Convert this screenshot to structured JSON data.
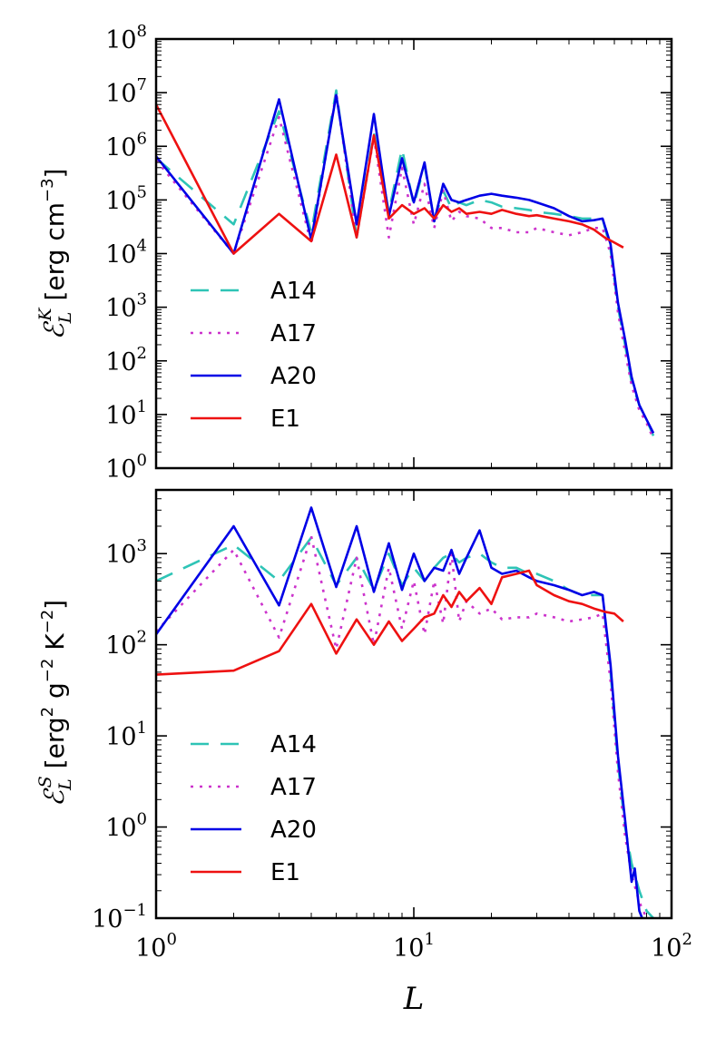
{
  "chart_data": [
    {
      "type": "line",
      "xscale": "log",
      "yscale": "log",
      "xlim": [
        1,
        100
      ],
      "ylim": [
        1,
        100000000
      ],
      "ylabel_symbol": "ℰ",
      "ylabel_sub": "L",
      "ylabel_sup": "K",
      "ylabel": "[erg cm",
      "ylabel_exp": "−3",
      "ylabel_close": "]",
      "xlabel": "",
      "yticks": [
        {
          "base": "10",
          "exp": "0"
        },
        {
          "base": "10",
          "exp": "1"
        },
        {
          "base": "10",
          "exp": "2"
        },
        {
          "base": "10",
          "exp": "3"
        },
        {
          "base": "10",
          "exp": "4"
        },
        {
          "base": "10",
          "exp": "5"
        },
        {
          "base": "10",
          "exp": "6"
        },
        {
          "base": "10",
          "exp": "7"
        },
        {
          "base": "10",
          "exp": "8"
        }
      ],
      "legend_position": "lower-left",
      "series": [
        {
          "name": "A14",
          "color": "#2ec4b6",
          "style": "dashed",
          "x": [
            1,
            2,
            3,
            4,
            5,
            6,
            7,
            8,
            9,
            10,
            11,
            12,
            13,
            14,
            15,
            16,
            18,
            20,
            22,
            25,
            28,
            30,
            35,
            40,
            45,
            50,
            54,
            58,
            62,
            66,
            70,
            75,
            80,
            85
          ],
          "y": [
            600000,
            35000,
            4500000,
            25000,
            11000000,
            20000,
            1800000,
            60000,
            900000,
            80000,
            450000,
            40000,
            150000,
            70000,
            90000,
            80000,
            100000,
            90000,
            75000,
            70000,
            65000,
            60000,
            55000,
            50000,
            45000,
            45000,
            45000,
            12000,
            1000,
            200,
            40,
            15,
            8,
            4
          ]
        },
        {
          "name": "A17",
          "color": "#cc33cc",
          "style": "dotted",
          "x": [
            1,
            2,
            3,
            4,
            5,
            6,
            7,
            8,
            9,
            10,
            11,
            12,
            13,
            14,
            15,
            16,
            18,
            20,
            22,
            25,
            28,
            30,
            35,
            40,
            45,
            50,
            54,
            58,
            62,
            66,
            70,
            75,
            80,
            85
          ],
          "y": [
            550000,
            10000,
            3500000,
            15000,
            10000000,
            20000,
            1500000,
            20000,
            400000,
            35000,
            200000,
            30000,
            150000,
            40000,
            60000,
            50000,
            45000,
            30000,
            30000,
            25000,
            25000,
            30000,
            25000,
            22000,
            25000,
            30000,
            30000,
            10000,
            800,
            150,
            35,
            12,
            7,
            3.5
          ]
        },
        {
          "name": "A20",
          "color": "#0000e6",
          "style": "solid",
          "x": [
            1,
            2,
            3,
            4,
            5,
            6,
            7,
            8,
            9,
            10,
            11,
            12,
            13,
            14,
            15,
            16,
            18,
            20,
            22,
            25,
            28,
            30,
            35,
            40,
            45,
            50,
            54,
            58,
            62,
            66,
            70,
            75,
            80,
            85
          ],
          "y": [
            650000,
            10000,
            7500000,
            18000,
            9000000,
            35000,
            4000000,
            50000,
            600000,
            90000,
            500000,
            40000,
            200000,
            100000,
            90000,
            100000,
            120000,
            130000,
            120000,
            110000,
            100000,
            90000,
            70000,
            50000,
            40000,
            42000,
            45000,
            15000,
            1200,
            250,
            50,
            15,
            8,
            4.5
          ]
        },
        {
          "name": "E1",
          "color": "#ee1111",
          "style": "solid",
          "x": [
            1,
            2,
            3,
            4,
            5,
            6,
            7,
            8,
            9,
            10,
            11,
            12,
            13,
            14,
            15,
            16,
            18,
            20,
            22,
            25,
            28,
            30,
            35,
            40,
            45,
            50,
            55,
            60,
            65
          ],
          "y": [
            6000000,
            10000,
            55000,
            17000,
            700000,
            20000,
            1600000,
            45000,
            80000,
            55000,
            70000,
            45000,
            80000,
            60000,
            70000,
            55000,
            60000,
            55000,
            65000,
            55000,
            50000,
            52000,
            45000,
            40000,
            35000,
            28000,
            20000,
            16000,
            13000
          ]
        }
      ]
    },
    {
      "type": "line",
      "xscale": "log",
      "yscale": "log",
      "xlim": [
        1,
        100
      ],
      "ylim": [
        0.1,
        5000
      ],
      "ylabel_symbol": "ℰ",
      "ylabel_sub": "L",
      "ylabel_sup": "S",
      "ylabel": "[erg",
      "ylabel_exp": "2",
      "ylabel_mid": " g",
      "ylabel_exp2": "−2",
      "ylabel_mid2": " K",
      "ylabel_exp3": "−2",
      "ylabel_close": "]",
      "xlabel": "L",
      "yticks": [
        {
          "base": "10",
          "exp": "−1"
        },
        {
          "base": "10",
          "exp": "0"
        },
        {
          "base": "10",
          "exp": "1"
        },
        {
          "base": "10",
          "exp": "2"
        },
        {
          "base": "10",
          "exp": "3"
        }
      ],
      "xticks": [
        {
          "base": "10",
          "exp": "0"
        },
        {
          "base": "10",
          "exp": "1"
        },
        {
          "base": "10",
          "exp": "2"
        }
      ],
      "legend_position": "lower-left",
      "series": [
        {
          "name": "A14",
          "color": "#2ec4b6",
          "style": "dashed",
          "x": [
            1,
            2,
            3,
            4,
            5,
            6,
            7,
            8,
            9,
            10,
            11,
            12,
            13,
            14,
            15,
            16,
            18,
            20,
            22,
            25,
            28,
            30,
            35,
            40,
            45,
            50,
            54,
            58,
            62,
            66,
            70,
            75,
            80,
            85
          ],
          "y": [
            500,
            1250,
            500,
            1500,
            450,
            900,
            400,
            1000,
            450,
            700,
            500,
            700,
            900,
            1000,
            800,
            900,
            1000,
            800,
            700,
            700,
            600,
            600,
            500,
            400,
            350,
            350,
            350,
            50,
            5,
            1,
            0.4,
            0.2,
            0.12,
            0.1
          ]
        },
        {
          "name": "A17",
          "color": "#cc33cc",
          "style": "dotted",
          "x": [
            1,
            2,
            3,
            4,
            5,
            6,
            7,
            8,
            9,
            10,
            11,
            12,
            13,
            14,
            15,
            16,
            18,
            20,
            22,
            25,
            28,
            30,
            35,
            40,
            45,
            50,
            54,
            58,
            62,
            66,
            70,
            75,
            80,
            85
          ],
          "y": [
            140,
            1100,
            120,
            1550,
            90,
            900,
            100,
            700,
            150,
            500,
            130,
            500,
            170,
            1000,
            180,
            300,
            220,
            250,
            190,
            200,
            200,
            220,
            200,
            180,
            190,
            200,
            220,
            40,
            4,
            0.8,
            0.3,
            0.15,
            0.1,
            0.08
          ]
        },
        {
          "name": "A20",
          "color": "#0000e6",
          "style": "solid",
          "x": [
            1,
            2,
            3,
            4,
            5,
            6,
            7,
            8,
            9,
            10,
            11,
            12,
            13,
            14,
            15,
            16,
            18,
            20,
            22,
            25,
            28,
            30,
            35,
            40,
            45,
            50,
            54,
            58,
            62,
            66,
            70,
            72,
            75,
            78,
            80
          ],
          "y": [
            130,
            2000,
            270,
            3200,
            430,
            2000,
            380,
            1300,
            400,
            1000,
            500,
            700,
            650,
            1100,
            600,
            900,
            1800,
            700,
            600,
            650,
            550,
            500,
            450,
            400,
            350,
            380,
            350,
            60,
            6,
            1.2,
            0.25,
            0.35,
            0.12,
            0.09,
            0.07
          ]
        },
        {
          "name": "E1",
          "color": "#ee1111",
          "style": "solid",
          "x": [
            1,
            2,
            3,
            4,
            5,
            6,
            7,
            8,
            9,
            10,
            11,
            12,
            13,
            14,
            15,
            16,
            18,
            20,
            22,
            25,
            28,
            30,
            35,
            40,
            45,
            50,
            55,
            60,
            65
          ],
          "y": [
            47,
            52,
            85,
            280,
            80,
            190,
            100,
            180,
            110,
            150,
            200,
            220,
            350,
            260,
            380,
            300,
            420,
            280,
            550,
            600,
            650,
            450,
            350,
            300,
            280,
            250,
            230,
            220,
            180
          ]
        }
      ]
    }
  ]
}
